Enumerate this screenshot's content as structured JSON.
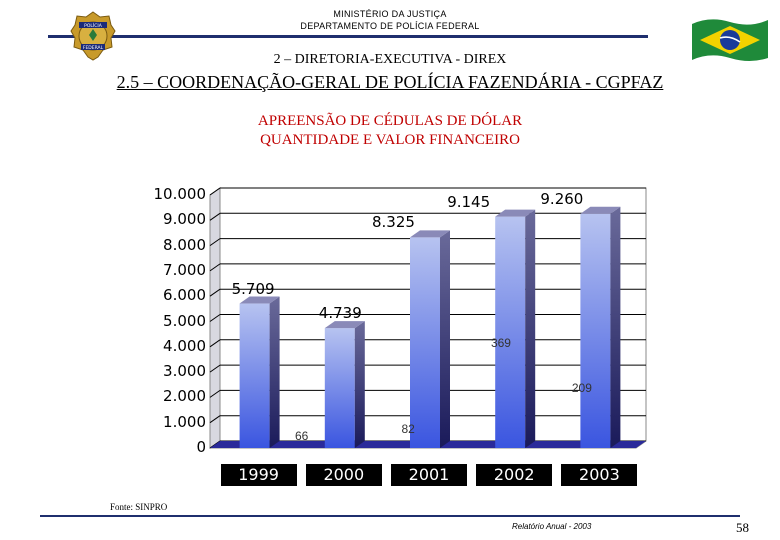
{
  "header": {
    "ministry": "MINISTÉRIO DA JUSTIÇA",
    "department": "DEPARTAMENTO DE POLÍCIA FEDERAL",
    "badge_top": "POLÍCIA",
    "badge_bottom": "FEDERAL"
  },
  "section": {
    "directorate": "2 – DIRETORIA-EXECUTIVA - DIREX",
    "coordination": "2.5 – COORDENAÇÃO-GERAL DE POLÍCIA FAZENDÁRIA - CGPFAZ"
  },
  "chart_title": {
    "line1": "APREENSÃO DE CÉDULAS DE DÓLAR",
    "line2": "QUANTIDADE E VALOR FINANCEIRO"
  },
  "chart_data": {
    "type": "bar",
    "categories": [
      "1999",
      "2000",
      "2001",
      "2002",
      "2003"
    ],
    "values": [
      5709,
      4739,
      8325,
      9145,
      9260
    ],
    "value_labels": [
      "5.709",
      "4.739",
      "8.325",
      "9.145",
      "9.260"
    ],
    "secondary_labels": [
      "66",
      "82",
      "369",
      "209"
    ],
    "ylim": [
      0,
      10000
    ],
    "yticks": [
      "0",
      "1.000",
      "2.000",
      "3.000",
      "4.000",
      "5.000",
      "6.000",
      "7.000",
      "8.000",
      "9.000",
      "10.000"
    ],
    "grid": true,
    "colors": {
      "bar_top": "#b7c3f0",
      "bar_bottom": "#3a55e0",
      "plot_bg": "#ffffff",
      "floor": "#2a2a9a"
    }
  },
  "footer": {
    "source": "Fonte: SINPRO",
    "report": "Relatório Anual - 2003",
    "page": "58"
  }
}
